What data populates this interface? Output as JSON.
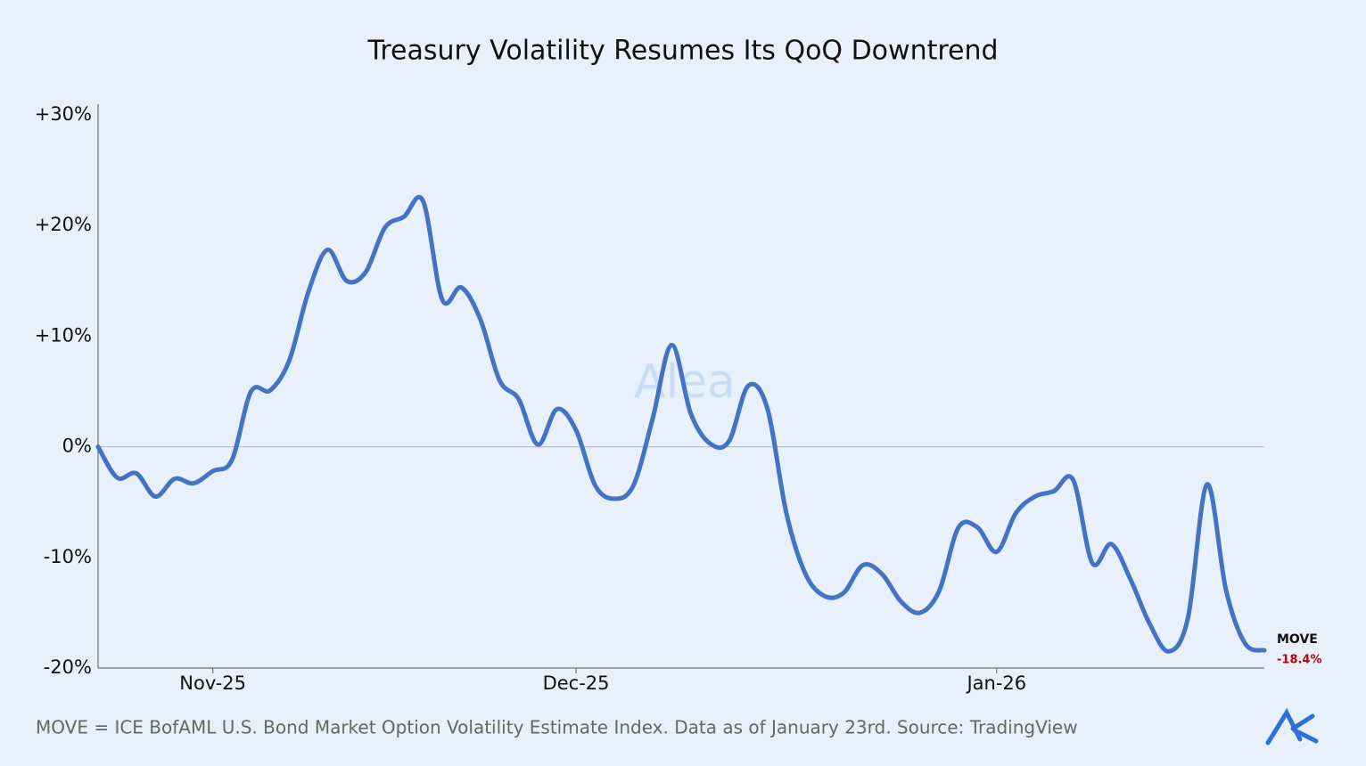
{
  "chart_data": {
    "type": "line",
    "title": "Treasury Volatility Resumes Its QoQ Downtrend",
    "note": "MOVE = ICE BofAML U.S. Bond Market Option Volatility Estimate Index. Data as of January 23rd. Source: TradingView",
    "watermark": "Alea",
    "categories": [
      null,
      null,
      null,
      null,
      null,
      null,
      "Nov-25",
      null,
      null,
      null,
      null,
      null,
      null,
      null,
      null,
      null,
      null,
      null,
      null,
      null,
      null,
      null,
      null,
      null,
      null,
      "Dec-25",
      null,
      null,
      null,
      null,
      null,
      null,
      null,
      null,
      null,
      null,
      null,
      null,
      null,
      null,
      null,
      null,
      null,
      null,
      null,
      null,
      null,
      "Jan-26",
      null,
      null,
      null,
      null,
      null,
      null,
      null,
      null,
      null,
      null,
      null,
      null,
      null,
      null
    ],
    "series": [
      {
        "name": "MOVE",
        "color": "#4472c4",
        "values": [
          0,
          -2.8,
          -2.4,
          -4.5,
          -2.9,
          -3.3,
          -2.2,
          -1.2,
          5.0,
          5.1,
          7.8,
          14,
          17.8,
          15,
          15.8,
          19.8,
          20.8,
          22.2,
          13.3,
          14.4,
          11.5,
          6,
          4.3,
          0.2,
          3.4,
          1.5,
          -3.5,
          -4.7,
          -3.5,
          2.5,
          9.2,
          3,
          0.3,
          0.5,
          5.5,
          3.5,
          -6,
          -11.5,
          -13.5,
          -13.2,
          -10.7,
          -11.5,
          -14,
          -15,
          -13,
          -7.3,
          -7.3,
          -9.5,
          -6,
          -4.5,
          -4,
          -3,
          -10.5,
          -8.8,
          -12,
          -16,
          -18.5,
          -15.5,
          -3.4,
          -13,
          -17.8,
          -18.4
        ],
        "value_labels": [
          null,
          null,
          null,
          null,
          null,
          null,
          null,
          null,
          null,
          null,
          null,
          null,
          null,
          null,
          null,
          null,
          null,
          null,
          null,
          null,
          null,
          null,
          null,
          null,
          null,
          null,
          null,
          null,
          null,
          null,
          null,
          null,
          null,
          null,
          null,
          null,
          null,
          null,
          null,
          null,
          null,
          null,
          null,
          null,
          null,
          null,
          null,
          null,
          null,
          null,
          null,
          null,
          null,
          null,
          null,
          null,
          null,
          null,
          null,
          null,
          null,
          "-18.4%"
        ],
        "value_label_color": "#c00000"
      }
    ],
    "ylim": [
      -20,
      30
    ],
    "yticks": [
      {
        "value": -20,
        "label": "-20%"
      },
      {
        "value": -10,
        "label": "-10%"
      },
      {
        "value": 0,
        "label": "0%"
      },
      {
        "value": 10,
        "label": "+10%"
      },
      {
        "value": 20,
        "label": "+20%"
      },
      {
        "value": 30,
        "label": "+30%"
      }
    ],
    "zero_line": true
  }
}
